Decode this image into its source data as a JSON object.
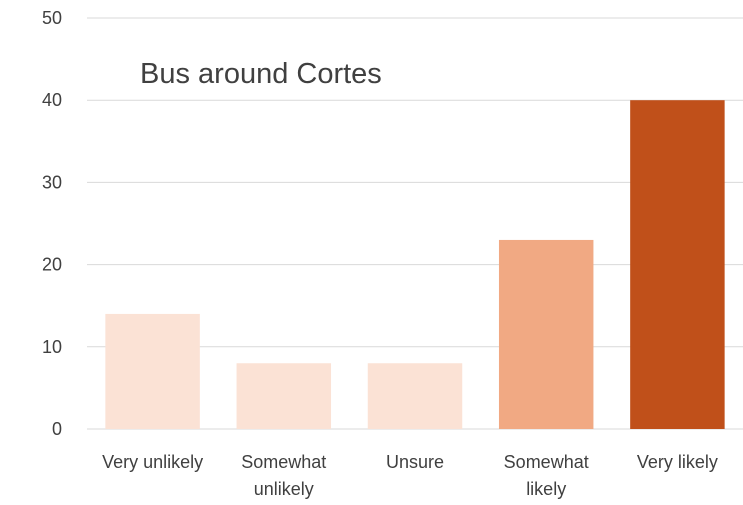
{
  "chart_data": {
    "type": "bar",
    "title": "Bus around Cortes",
    "categories": [
      [
        "Very unlikely"
      ],
      [
        "Somewhat",
        "unlikely"
      ],
      [
        "Unsure"
      ],
      [
        "Somewhat",
        "likely"
      ],
      [
        "Very likely"
      ]
    ],
    "values": [
      14,
      8,
      8,
      23,
      40
    ],
    "colors": [
      "#fbe2d5",
      "#fbe2d5",
      "#fbe2d5",
      "#f1a983",
      "#c0501a"
    ],
    "ylim": [
      0,
      50
    ],
    "yticks": [
      "0",
      "10",
      "20",
      "30",
      "40",
      "50"
    ],
    "grid": true,
    "legend": "none"
  }
}
